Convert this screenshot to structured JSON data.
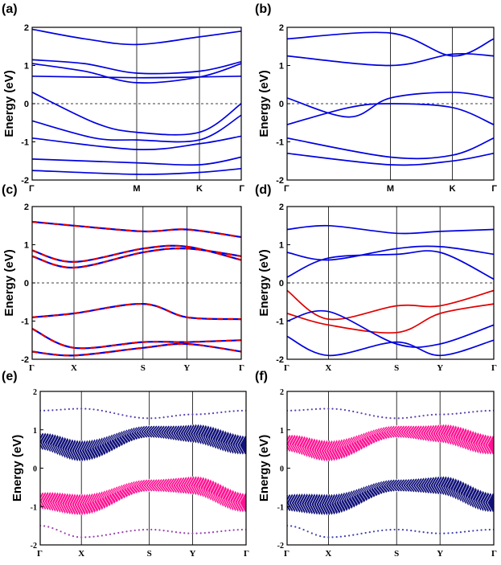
{
  "chart_data": [
    {
      "panel_label": "(a)",
      "type": "line",
      "style": "solid",
      "ylabel": "Energy (eV)",
      "ylim": [
        -2,
        2
      ],
      "yticks": [
        "2",
        "1",
        "0",
        "-1",
        "-2"
      ],
      "x_labels": [
        "Γ",
        "M",
        "K",
        "Γ"
      ],
      "x_positions": [
        0,
        0.5,
        0.8,
        1
      ],
      "fermi_level": 0,
      "colors": {
        "band": "#0000e0"
      },
      "series": [
        {
          "color": "#0000e0",
          "x": [
            0,
            0.25,
            0.5,
            0.8,
            1
          ],
          "y": [
            1.95,
            1.7,
            1.55,
            1.75,
            1.9
          ]
        },
        {
          "color": "#0000e0",
          "x": [
            0,
            0.25,
            0.5,
            0.8,
            1
          ],
          "y": [
            1.15,
            1.05,
            0.8,
            0.85,
            1.1
          ]
        },
        {
          "color": "#0000e0",
          "x": [
            0,
            0.25,
            0.5,
            0.8,
            1
          ],
          "y": [
            1.05,
            0.85,
            0.55,
            0.7,
            1.05
          ]
        },
        {
          "color": "#0000e0",
          "x": [
            0,
            0.5,
            0.8,
            1
          ],
          "y": [
            0.72,
            0.68,
            0.7,
            0.72
          ]
        },
        {
          "color": "#0000e0",
          "x": [
            0,
            0.3,
            0.5,
            0.8,
            1
          ],
          "y": [
            0.3,
            -0.5,
            -0.75,
            -0.75,
            0.0
          ]
        },
        {
          "color": "#0000e0",
          "x": [
            0,
            0.3,
            0.5,
            0.8,
            1
          ],
          "y": [
            -0.45,
            -0.9,
            -0.95,
            -0.95,
            -0.3
          ]
        },
        {
          "color": "#0000e0",
          "x": [
            0,
            0.5,
            0.8,
            1
          ],
          "y": [
            -0.9,
            -1.2,
            -1.05,
            -0.85
          ]
        },
        {
          "color": "#0000e0",
          "x": [
            0,
            0.5,
            0.8,
            1
          ],
          "y": [
            -1.45,
            -1.55,
            -1.6,
            -1.4
          ]
        },
        {
          "color": "#0000e0",
          "x": [
            0,
            0.5,
            0.8,
            1
          ],
          "y": [
            -1.75,
            -1.85,
            -1.8,
            -1.7
          ]
        }
      ]
    },
    {
      "panel_label": "(b)",
      "type": "line",
      "style": "solid",
      "ylabel": "Energy (eV)",
      "ylim": [
        -2,
        2
      ],
      "yticks": [
        "2",
        "1",
        "0",
        "-1",
        "-2"
      ],
      "x_labels": [
        "Γ",
        "M",
        "K",
        "Γ"
      ],
      "x_positions": [
        0,
        0.5,
        0.8,
        1
      ],
      "fermi_level": 0,
      "colors": {
        "band": "#0000e0"
      },
      "series": [
        {
          "color": "#0000e0",
          "x": [
            0,
            0.5,
            0.8,
            1
          ],
          "y": [
            1.7,
            1.85,
            1.25,
            1.7
          ]
        },
        {
          "color": "#0000e0",
          "x": [
            0,
            0.5,
            0.8,
            1
          ],
          "y": [
            1.25,
            1.0,
            1.3,
            1.25
          ]
        },
        {
          "color": "#0000e0",
          "x": [
            0,
            0.3,
            0.5,
            0.8,
            1
          ],
          "y": [
            0.15,
            -0.35,
            0.15,
            0.3,
            0.15
          ]
        },
        {
          "color": "#0000e0",
          "x": [
            0,
            0.3,
            0.5,
            0.8,
            1
          ],
          "y": [
            -0.55,
            -0.1,
            0.0,
            -0.1,
            -0.55
          ]
        },
        {
          "color": "#0000e0",
          "x": [
            0,
            0.5,
            0.8,
            1
          ],
          "y": [
            -0.9,
            -1.4,
            -1.35,
            -0.9
          ]
        },
        {
          "color": "#0000e0",
          "x": [
            0,
            0.5,
            0.8,
            1
          ],
          "y": [
            -1.3,
            -1.6,
            -1.5,
            -1.3
          ]
        }
      ]
    },
    {
      "panel_label": "(c)",
      "type": "line",
      "style": "dashed",
      "ylabel": "Energy (eV)",
      "ylim": [
        -2,
        2
      ],
      "yticks": [
        "2",
        "1",
        "0",
        "-1",
        "-2"
      ],
      "x_labels": [
        "Γ",
        "X",
        "S",
        "Y",
        "Γ"
      ],
      "x_positions": [
        0,
        0.2,
        0.53,
        0.74,
        1
      ],
      "fermi_level": 0,
      "colors": {
        "spin_up": "#e00000",
        "spin_down": "#0000e0"
      },
      "series": [
        {
          "color": "#e00000",
          "x": [
            0,
            0.2,
            0.53,
            0.74,
            1
          ],
          "y": [
            1.6,
            1.5,
            1.35,
            1.4,
            1.2
          ]
        },
        {
          "color": "#e00000",
          "x": [
            0,
            0.2,
            0.53,
            0.74,
            1
          ],
          "y": [
            0.85,
            0.55,
            0.9,
            0.95,
            0.6
          ]
        },
        {
          "color": "#e00000",
          "x": [
            0,
            0.2,
            0.53,
            0.74,
            1
          ],
          "y": [
            0.7,
            0.4,
            0.8,
            0.9,
            0.7
          ]
        },
        {
          "color": "#e00000",
          "x": [
            0,
            0.2,
            0.53,
            0.74,
            1
          ],
          "y": [
            -0.9,
            -0.8,
            -0.55,
            -0.9,
            -0.95
          ]
        },
        {
          "color": "#e00000",
          "x": [
            0,
            0.2,
            0.53,
            0.74,
            1
          ],
          "y": [
            -1.2,
            -1.7,
            -1.55,
            -1.55,
            -1.5
          ]
        },
        {
          "color": "#e00000",
          "x": [
            0,
            0.2,
            0.53,
            0.74,
            1
          ],
          "y": [
            -1.8,
            -1.9,
            -1.7,
            -1.6,
            -1.8
          ]
        }
      ]
    },
    {
      "panel_label": "(d)",
      "type": "line",
      "style": "solid",
      "ylabel": "Energy (eV)",
      "ylim": [
        -2,
        2
      ],
      "yticks": [
        "2",
        "1",
        "0",
        "-1",
        "-2"
      ],
      "x_labels": [
        "Γ",
        "X",
        "S",
        "Y",
        "Γ"
      ],
      "x_positions": [
        0,
        0.2,
        0.53,
        0.74,
        1
      ],
      "fermi_level": 0,
      "colors": {
        "spin_up": "#e00000",
        "spin_down": "#0000e0"
      },
      "series": [
        {
          "color": "#0000e0",
          "x": [
            0,
            0.2,
            0.53,
            0.74,
            1
          ],
          "y": [
            1.4,
            1.5,
            1.3,
            1.35,
            1.4
          ]
        },
        {
          "color": "#0000e0",
          "x": [
            0,
            0.2,
            0.53,
            0.74,
            1
          ],
          "y": [
            0.8,
            0.6,
            0.9,
            0.95,
            0.75
          ]
        },
        {
          "color": "#0000e0",
          "x": [
            0,
            0.2,
            0.53,
            0.74,
            1
          ],
          "y": [
            0.15,
            0.65,
            0.75,
            0.8,
            0.1
          ]
        },
        {
          "color": "#e00000",
          "x": [
            0,
            0.2,
            0.53,
            0.74,
            1
          ],
          "y": [
            -0.2,
            -0.95,
            -0.6,
            -0.6,
            -0.2
          ]
        },
        {
          "color": "#e00000",
          "x": [
            0,
            0.2,
            0.53,
            0.74,
            1
          ],
          "y": [
            -0.8,
            -1.1,
            -1.3,
            -0.8,
            -0.55
          ]
        },
        {
          "color": "#0000e0",
          "x": [
            0,
            0.2,
            0.53,
            0.74,
            1
          ],
          "y": [
            -1.0,
            -0.75,
            -1.6,
            -1.6,
            -1.1
          ]
        },
        {
          "color": "#0000e0",
          "x": [
            0,
            0.2,
            0.53,
            0.74,
            1
          ],
          "y": [
            -1.4,
            -1.9,
            -1.55,
            -1.9,
            -1.5
          ]
        }
      ]
    },
    {
      "panel_label": "(e)",
      "type": "scatter",
      "style": "fat-band",
      "ylabel": "Energy (eV)",
      "ylim": [
        -2,
        2
      ],
      "yticks": [
        "2",
        "1",
        "0",
        "-1",
        "-2"
      ],
      "x_labels": [
        "Γ",
        "X",
        "S",
        "Y",
        "Γ"
      ],
      "x_positions": [
        0,
        0.2,
        0.53,
        0.74,
        1
      ],
      "fermi_level": null,
      "colors": {
        "navy": "#12127a",
        "pink": "#ff1493"
      },
      "fat_bands": [
        {
          "color": "#12127a",
          "x": [
            0,
            0.2,
            0.53,
            0.74,
            1
          ],
          "y": [
            0.7,
            0.45,
            0.95,
            0.9,
            0.6
          ]
        },
        {
          "color": "#ff1493",
          "x": [
            0,
            0.2,
            0.53,
            0.74,
            1
          ],
          "y": [
            -0.85,
            -0.95,
            -0.45,
            -0.45,
            -0.9
          ]
        }
      ],
      "thin_bands": [
        {
          "color": "#5b3fb0",
          "x": [
            0,
            0.2,
            0.53,
            0.74,
            1
          ],
          "y": [
            1.5,
            1.55,
            1.3,
            1.4,
            1.5
          ]
        },
        {
          "color": "#9b3fb0",
          "x": [
            0,
            0.2,
            0.53,
            0.74,
            1
          ],
          "y": [
            -1.5,
            -1.8,
            -1.6,
            -1.7,
            -1.6
          ]
        }
      ]
    },
    {
      "panel_label": "(f)",
      "type": "scatter",
      "style": "fat-band",
      "ylabel": "Energy (eV)",
      "ylim": [
        -2,
        2
      ],
      "yticks": [
        "2",
        "1",
        "0",
        "-1",
        "-2"
      ],
      "x_labels": [
        "Γ",
        "X",
        "S",
        "Y",
        "Γ"
      ],
      "x_positions": [
        0,
        0.2,
        0.53,
        0.74,
        1
      ],
      "fermi_level": null,
      "colors": {
        "navy": "#12127a",
        "pink": "#ff1493"
      },
      "fat_bands": [
        {
          "color": "#ff1493",
          "x": [
            0,
            0.2,
            0.53,
            0.74,
            1
          ],
          "y": [
            0.65,
            0.45,
            0.95,
            0.9,
            0.6
          ]
        },
        {
          "color": "#12127a",
          "x": [
            0,
            0.2,
            0.53,
            0.74,
            1
          ],
          "y": [
            -0.9,
            -0.95,
            -0.45,
            -0.45,
            -0.9
          ]
        }
      ],
      "thin_bands": [
        {
          "color": "#5b3fb0",
          "x": [
            0,
            0.2,
            0.53,
            0.74,
            1
          ],
          "y": [
            1.5,
            1.55,
            1.3,
            1.4,
            1.5
          ]
        },
        {
          "color": "#3f3fb0",
          "x": [
            0,
            0.2,
            0.53,
            0.74,
            1
          ],
          "y": [
            -1.5,
            -1.8,
            -1.6,
            -1.7,
            -1.6
          ]
        }
      ]
    }
  ]
}
